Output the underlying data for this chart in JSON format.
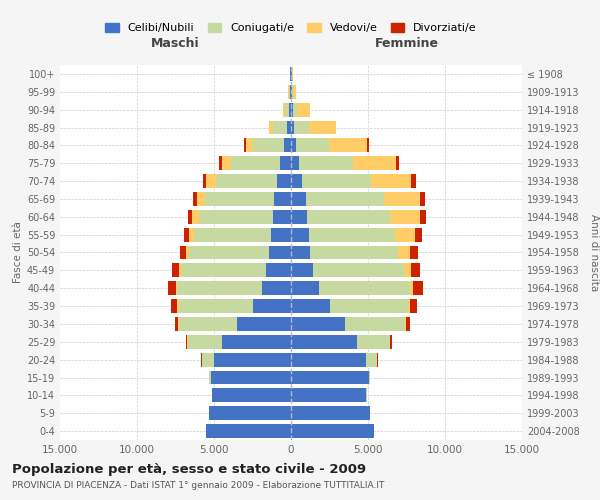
{
  "age_groups": [
    "0-4",
    "5-9",
    "10-14",
    "15-19",
    "20-24",
    "25-29",
    "30-34",
    "35-39",
    "40-44",
    "45-49",
    "50-54",
    "55-59",
    "60-64",
    "65-69",
    "70-74",
    "75-79",
    "80-84",
    "85-89",
    "90-94",
    "95-99",
    "100+"
  ],
  "birth_years": [
    "2004-2008",
    "1999-2003",
    "1994-1998",
    "1989-1993",
    "1984-1988",
    "1979-1983",
    "1974-1978",
    "1969-1973",
    "1964-1968",
    "1959-1963",
    "1954-1958",
    "1949-1953",
    "1944-1948",
    "1939-1943",
    "1934-1938",
    "1929-1933",
    "1924-1928",
    "1919-1923",
    "1914-1918",
    "1909-1913",
    "≤ 1908"
  ],
  "colors": {
    "celibi": "#4472C4",
    "coniugati": "#C5D9A0",
    "vedovi": "#FFCC66",
    "divorziati": "#CC2200"
  },
  "males": {
    "celibi": [
      5500,
      5300,
      5100,
      5200,
      5000,
      4500,
      3500,
      2500,
      1900,
      1600,
      1400,
      1300,
      1200,
      1100,
      900,
      700,
      450,
      250,
      150,
      80,
      50
    ],
    "coniugati": [
      10,
      20,
      50,
      100,
      800,
      2200,
      3800,
      4800,
      5500,
      5500,
      5200,
      5000,
      4800,
      4500,
      4000,
      3200,
      2000,
      900,
      250,
      80,
      30
    ],
    "vedovi": [
      0,
      0,
      5,
      5,
      10,
      30,
      60,
      80,
      100,
      150,
      200,
      300,
      400,
      500,
      600,
      600,
      500,
      250,
      100,
      50,
      10
    ],
    "divorziati": [
      0,
      0,
      5,
      10,
      30,
      80,
      200,
      400,
      500,
      450,
      400,
      350,
      300,
      250,
      200,
      150,
      80,
      30,
      20,
      10,
      5
    ]
  },
  "females": {
    "nubili": [
      5400,
      5100,
      4900,
      5050,
      4900,
      4300,
      3500,
      2500,
      1800,
      1450,
      1250,
      1150,
      1050,
      950,
      720,
      520,
      350,
      200,
      130,
      80,
      50
    ],
    "coniugate": [
      8,
      12,
      35,
      90,
      680,
      2100,
      3900,
      5100,
      5900,
      5900,
      5700,
      5600,
      5400,
      5100,
      4500,
      3500,
      2100,
      1000,
      280,
      70,
      25
    ],
    "vedove": [
      0,
      0,
      3,
      5,
      15,
      45,
      90,
      130,
      220,
      430,
      750,
      1300,
      1900,
      2300,
      2600,
      2800,
      2500,
      1700,
      800,
      180,
      25
    ],
    "divorziate": [
      0,
      0,
      5,
      10,
      35,
      110,
      260,
      480,
      630,
      580,
      530,
      480,
      430,
      380,
      290,
      200,
      100,
      40,
      15,
      8,
      3
    ]
  },
  "title": "Popolazione per età, sesso e stato civile - 2009",
  "subtitle": "PROVINCIA DI PIACENZA - Dati ISTAT 1° gennaio 2009 - Elaborazione TUTTITALIA.IT",
  "label_maschi": "Maschi",
  "label_femmine": "Femmine",
  "ylabel_left": "Fasce di età",
  "ylabel_right": "Anni di nascita",
  "xlim": 15000,
  "legend_labels": [
    "Celibi/Nubili",
    "Coniugati/e",
    "Vedovi/e",
    "Divorziati/e"
  ],
  "bg_color": "#F5F5F5",
  "plot_bg": "#FFFFFF",
  "grid_color": "#CCCCCC"
}
